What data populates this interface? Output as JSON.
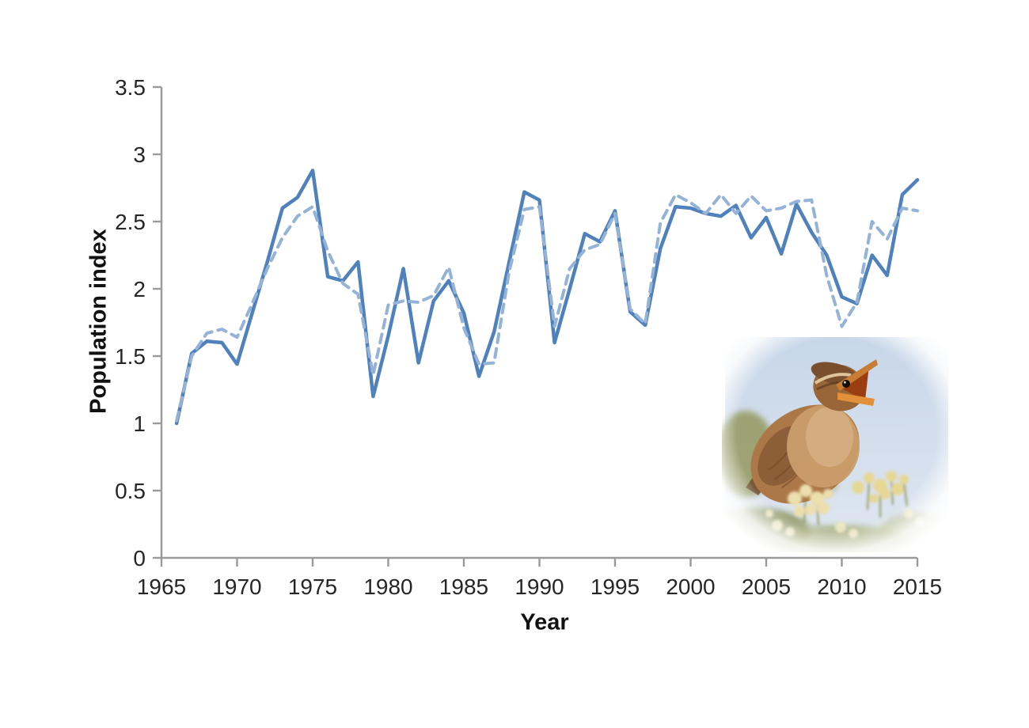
{
  "chart_data": {
    "type": "line",
    "title": "",
    "xlabel": "Year",
    "ylabel": "Population index",
    "xlim": [
      1965,
      2015
    ],
    "ylim": [
      0,
      3.5
    ],
    "grid": false,
    "legend": "none",
    "x_ticks": [
      1965,
      1970,
      1975,
      1980,
      1985,
      1990,
      1995,
      2000,
      2005,
      2010,
      2015
    ],
    "x_tick_labels": [
      "1965",
      "1970",
      "1975",
      "1980",
      "1985",
      "1990",
      "1995",
      "2000",
      "2005",
      "2010",
      "2015"
    ],
    "y_ticks": [
      0,
      0.5,
      1,
      1.5,
      2,
      2.5,
      3,
      3.5
    ],
    "y_tick_labels": [
      "0",
      "0.5",
      "1",
      "1.5",
      "2",
      "2.5",
      "3",
      "3.5"
    ],
    "axis_color": "#9a9a9a",
    "tick_label_color": "#262626",
    "x": [
      1966,
      1967,
      1968,
      1969,
      1970,
      1971,
      1972,
      1973,
      1974,
      1975,
      1976,
      1977,
      1978,
      1979,
      1980,
      1981,
      1982,
      1983,
      1984,
      1985,
      1986,
      1987,
      1988,
      1989,
      1990,
      1991,
      1992,
      1993,
      1994,
      1995,
      1996,
      1997,
      1998,
      1999,
      2000,
      2001,
      2002,
      2003,
      2004,
      2005,
      2006,
      2007,
      2008,
      2009,
      2010,
      2011,
      2012,
      2013,
      2014,
      2015
    ],
    "series": [
      {
        "id": "solid-line",
        "style": "solid",
        "color": "#4F81BD",
        "values": [
          1.0,
          1.52,
          1.61,
          1.6,
          1.44,
          1.82,
          2.2,
          2.6,
          2.68,
          2.88,
          2.09,
          2.06,
          2.2,
          1.2,
          1.65,
          2.15,
          1.45,
          1.91,
          2.06,
          1.82,
          1.35,
          1.68,
          2.2,
          2.72,
          2.66,
          1.6,
          2.0,
          2.41,
          2.35,
          2.58,
          1.83,
          1.73,
          2.3,
          2.61,
          2.6,
          2.56,
          2.54,
          2.62,
          2.38,
          2.53,
          2.26,
          2.63,
          2.42,
          2.25,
          1.94,
          1.89,
          2.25,
          2.1,
          2.7,
          2.81
        ]
      },
      {
        "id": "dashed-line",
        "style": "dashed",
        "color": "#95B3D7",
        "values": [
          1.02,
          1.5,
          1.67,
          1.7,
          1.64,
          1.89,
          2.15,
          2.38,
          2.54,
          2.61,
          2.28,
          2.04,
          1.96,
          1.36,
          1.88,
          1.91,
          1.9,
          1.95,
          2.16,
          1.71,
          1.44,
          1.45,
          2.13,
          2.59,
          2.61,
          1.72,
          2.15,
          2.29,
          2.33,
          2.56,
          1.85,
          1.74,
          2.49,
          2.7,
          2.64,
          2.56,
          2.7,
          2.56,
          2.69,
          2.58,
          2.6,
          2.65,
          2.66,
          2.1,
          1.72,
          1.9,
          2.5,
          2.37,
          2.6,
          2.58
        ]
      }
    ]
  },
  "illustration": {
    "subject": "singing wren perched among pale yellow flower buds",
    "sky_color": "#cdd9ea",
    "bird_brown": "#ad7848",
    "breast_color": "#c99d6c",
    "beak_orange": "#e2903a",
    "bud_cream": "#ecdfae",
    "foliage_olive": "#8f9455"
  }
}
